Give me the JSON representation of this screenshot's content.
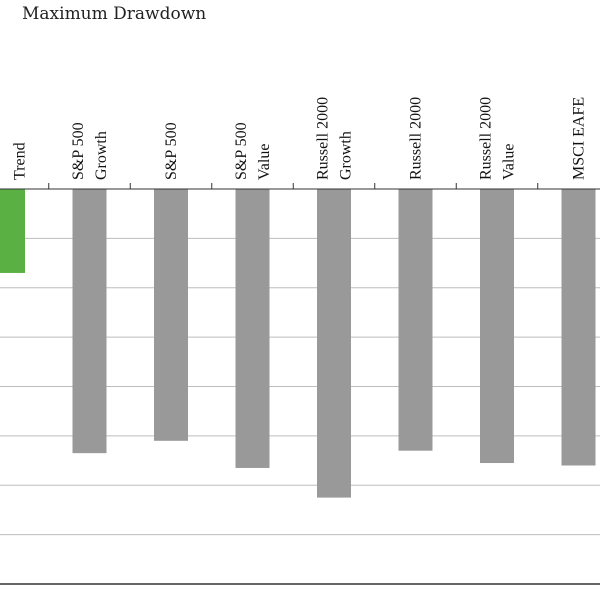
{
  "colors": {
    "highlight_bar": "#5ab043",
    "bar": "#999999",
    "gridline": "#bdbdbd",
    "axis": "#333333",
    "text": "#111111"
  },
  "chart_data": {
    "type": "bar",
    "title": "Maximum Drawdown",
    "categories": [
      [
        "",
        "Trend"
      ],
      [
        "S&P 500",
        "Growth"
      ],
      [
        "S&P 500"
      ],
      [
        "S&P 500",
        "Value"
      ],
      [
        "Russell 2000",
        "Growth"
      ],
      [
        "Russell 2000"
      ],
      [
        "Russell 2000",
        "Value"
      ],
      [
        "MSCI EAFE"
      ]
    ],
    "values": [
      -17,
      -53.5,
      -51,
      -56.5,
      -62.5,
      -53,
      -55.5,
      -56
    ],
    "highlight_index": 0,
    "ylim": [
      -80,
      0
    ],
    "grid": true
  }
}
